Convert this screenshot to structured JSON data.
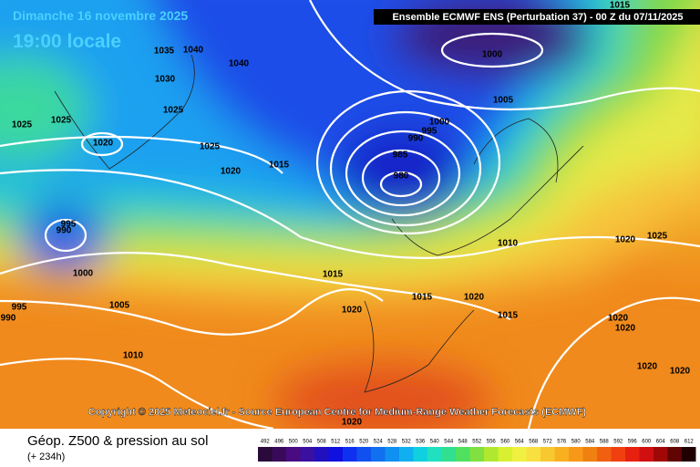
{
  "header": {
    "date": "Dimanche 16 novembre 2025",
    "time": "19:00 locale",
    "model": "Ensemble ECMWF ENS  (Perturbation 37)  -  00 Z du 07/11/2025"
  },
  "copyright": "Copyright © 2025 Meteociel.fr - Source European Centre for Medium-Range Weather Forecasts (ECMWF)",
  "footer": {
    "title": "Géop. Z500 & pression au sol",
    "lead": "(+ 234h)"
  },
  "scale": [
    492,
    496,
    500,
    504,
    508,
    512,
    516,
    520,
    524,
    528,
    532,
    536,
    540,
    544,
    548,
    552,
    556,
    560,
    564,
    568,
    572,
    576,
    580,
    584,
    588,
    592,
    596,
    600,
    604,
    608,
    612
  ],
  "isobar_labels": [
    1040,
    1035,
    1040,
    1030,
    1025,
    1025,
    1025,
    1020,
    1025,
    1020,
    1015,
    995,
    990,
    1000,
    995,
    990,
    1005,
    1010,
    1015,
    1020,
    1015,
    1020,
    1015,
    1010,
    1020,
    1025,
    1020,
    1020,
    1020,
    1020,
    1020,
    980,
    985,
    990,
    995,
    1000,
    1005,
    1000,
    1015
  ]
}
